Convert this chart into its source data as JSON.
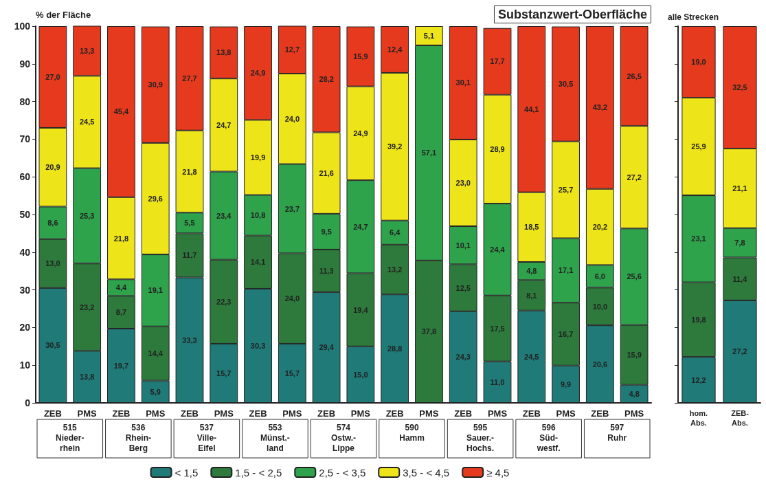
{
  "chart_data": [
    {
      "type": "bar",
      "stacked": true,
      "title": "Substanzwert-Oberfläche",
      "ylabel": "% der Fläche",
      "categories": [
        "ZEB",
        "PMS",
        "ZEB",
        "PMS",
        "ZEB",
        "PMS",
        "ZEB",
        "PMS",
        "ZEB",
        "PMS",
        "ZEB",
        "PMS",
        "ZEB",
        "PMS",
        "ZEB",
        "PMS",
        "ZEB",
        "PMS"
      ],
      "annotations": [
        "515\nNieder-\nrhein",
        "536\nRhein-\nBerg",
        "537\nVille-\nEifel",
        "553\nMünst.-\nland",
        "574\nOstw.-\nLippe",
        "590\nHamm",
        "595\nSauer.-\nHochs.",
        "596\nSüd-\nwestf.",
        "597\nRuhr"
      ],
      "ylim": [
        0,
        100
      ],
      "yticks": [
        0,
        10,
        20,
        30,
        40,
        50,
        60,
        70,
        80,
        90,
        100
      ],
      "legend": "bottom",
      "series": [
        {
          "name": "< 1,5",
          "color": "#1f7a78",
          "values": [
            30.5,
            13.8,
            19.7,
            5.9,
            33.3,
            15.7,
            30.3,
            15.7,
            29.4,
            15.0,
            28.8,
            null,
            24.3,
            11.0,
            24.5,
            9.9,
            20.6,
            4.8
          ],
          "value_labels": [
            "30,5",
            "13,8",
            "19,7",
            "5,9",
            "33,3",
            "15,7",
            "30,3",
            "15,7",
            "29,4",
            "15,0",
            "28,8",
            null,
            "24,3",
            "11,0",
            "24,5",
            "9,9",
            "20,6",
            "4,8"
          ]
        },
        {
          "name": "1,5 - < 2,5",
          "color": "#2d7a3c",
          "values": [
            13.0,
            23.2,
            8.7,
            14.4,
            11.7,
            22.3,
            14.1,
            24.0,
            11.3,
            19.4,
            13.2,
            37.8,
            12.5,
            17.5,
            8.1,
            16.7,
            10.0,
            15.9
          ],
          "value_labels": [
            "13,0",
            "23,2",
            "8,7",
            "14,4",
            "11,7",
            "22,3",
            "14,1",
            "24,0",
            "11,3",
            "19,4",
            "13,2",
            "37,8",
            "12,5",
            "17,5",
            "8,1",
            "16,7",
            "10,0",
            "15,9"
          ]
        },
        {
          "name": "2,5 - < 3,5",
          "color": "#2fa24c",
          "values": [
            8.6,
            25.3,
            4.4,
            19.1,
            5.5,
            23.4,
            10.8,
            23.7,
            9.5,
            24.7,
            6.4,
            57.1,
            10.1,
            24.4,
            4.8,
            17.1,
            6.0,
            25.6
          ],
          "value_labels": [
            "8,6",
            "25,3",
            "4,4",
            "19,1",
            "5,5",
            "23,4",
            "10,8",
            "23,7",
            "9,5",
            "24,7",
            "6,4",
            "57,1",
            "10,1",
            "24,4",
            "4,8",
            "17,1",
            "6,0",
            "25,6"
          ]
        },
        {
          "name": "3,5 - < 4,5",
          "color": "#eee41a",
          "values": [
            20.9,
            24.5,
            21.8,
            29.6,
            21.8,
            24.7,
            19.9,
            24.0,
            21.6,
            24.9,
            39.2,
            5.1,
            23.0,
            28.9,
            18.5,
            25.7,
            20.2,
            27.2
          ],
          "value_labels": [
            "20,9",
            "24,5",
            "21,8",
            "29,6",
            "21,8",
            "24,7",
            "19,9",
            "24,0",
            "21,6",
            "24,9",
            "39,2",
            "5,1",
            "23,0",
            "28,9",
            "18,5",
            "25,7",
            "20,2",
            "27,2"
          ]
        },
        {
          "name": "≥ 4,5",
          "color": "#e53a1e",
          "values": [
            27.0,
            13.3,
            45.4,
            30.9,
            27.7,
            13.8,
            24.9,
            12.7,
            28.2,
            15.9,
            12.4,
            null,
            30.1,
            17.7,
            44.1,
            30.5,
            43.2,
            26.5
          ],
          "value_labels": [
            "27,0",
            "13,3",
            "45,4",
            "30,9",
            "27,7",
            "13,8",
            "24,9",
            "12,7",
            "28,2",
            "15,9",
            "12,4",
            null,
            "30,1",
            "17,7",
            "44,1",
            "30,5",
            "43,2",
            "26,5"
          ]
        }
      ]
    },
    {
      "type": "bar",
      "stacked": true,
      "title": "alle Strecken",
      "categories": [
        "hom.\nAbs.",
        "ZEB-\nAbs."
      ],
      "ylim": [
        0,
        100
      ],
      "yticks": [
        0,
        10,
        20,
        30,
        40,
        50,
        60,
        70,
        80,
        90,
        100
      ],
      "tick_labels": "x",
      "series": [
        {
          "color": "#1f7a78",
          "values": [
            12.2,
            27.2
          ],
          "value_labels": [
            "12,2",
            "27,2"
          ]
        },
        {
          "color": "#2d7a3c",
          "values": [
            19.8,
            11.4
          ],
          "value_labels": [
            "19,8",
            "11,4"
          ]
        },
        {
          "color": "#2fa24c",
          "values": [
            23.1,
            7.8
          ],
          "value_labels": [
            "23,1",
            "7,8"
          ]
        },
        {
          "color": "#eee41a",
          "values": [
            25.9,
            21.1
          ],
          "value_labels": [
            "25,9",
            "21,1"
          ]
        },
        {
          "color": "#e53a1e",
          "values": [
            19.0,
            32.5
          ],
          "value_labels": [
            "19,0",
            "32,5"
          ]
        }
      ]
    }
  ]
}
